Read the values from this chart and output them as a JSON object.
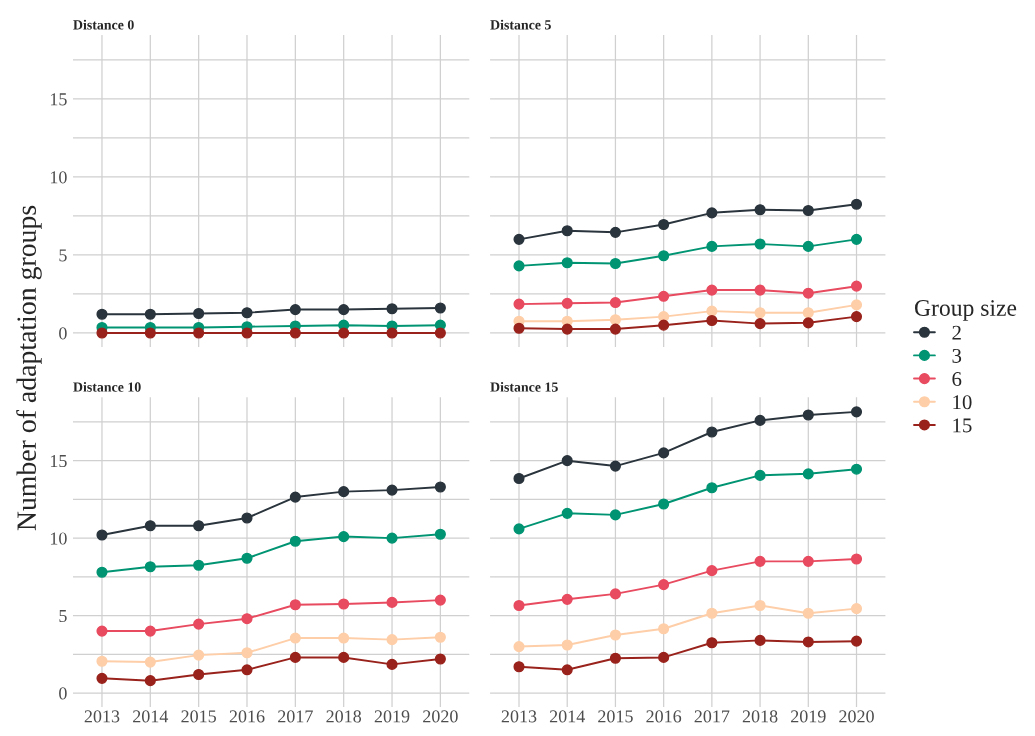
{
  "chart_data": [
    {
      "type": "line",
      "title": "Distance 0",
      "ylabel": "Number of adaptation groups",
      "legend_title": "Group size",
      "legend": "right",
      "grid": true,
      "marker": "circle",
      "tick_labels": "y",
      "categories": [
        "2013",
        "2014",
        "2015",
        "2016",
        "2017",
        "2018",
        "2019",
        "2020"
      ],
      "ylim": [
        -0.9,
        19.1
      ],
      "yticks": [
        0,
        {
          "value": 2.5,
          "label": null
        },
        5,
        {
          "value": 7.5,
          "label": null
        },
        10,
        {
          "value": 12.5,
          "label": null
        },
        15,
        {
          "value": 17.5,
          "label": null
        }
      ],
      "series": [
        {
          "name": "2",
          "color": "#2a343c",
          "values": [
            1.2,
            1.2,
            1.25,
            1.3,
            1.5,
            1.5,
            1.55,
            1.6
          ]
        },
        {
          "name": "3",
          "color": "#009473",
          "values": [
            0.35,
            0.35,
            0.35,
            0.4,
            0.45,
            0.5,
            0.45,
            0.5
          ]
        },
        {
          "name": "6",
          "color": "#e84a5f",
          "values": [
            null,
            null,
            null,
            null,
            null,
            null,
            null,
            null
          ]
        },
        {
          "name": "10",
          "color": "#fecea8",
          "values": [
            null,
            null,
            null,
            null,
            null,
            null,
            null,
            null
          ]
        },
        {
          "name": "15",
          "color": "#99231c",
          "values": [
            0,
            0,
            0,
            0,
            0,
            0,
            0,
            0
          ]
        }
      ]
    },
    {
      "type": "line",
      "title": "Distance 5",
      "grid": true,
      "marker": "circle",
      "tick_labels": false,
      "categories": [
        "2013",
        "2014",
        "2015",
        "2016",
        "2017",
        "2018",
        "2019",
        "2020"
      ],
      "ylim": [
        -0.9,
        19.1
      ],
      "yticks": [
        0,
        {
          "value": 2.5,
          "label": null
        },
        5,
        {
          "value": 7.5,
          "label": null
        },
        10,
        {
          "value": 12.5,
          "label": null
        },
        15,
        {
          "value": 17.5,
          "label": null
        }
      ],
      "series": [
        {
          "color": "#2a343c",
          "values": [
            6.0,
            6.55,
            6.45,
            6.95,
            7.7,
            7.9,
            7.85,
            8.25
          ]
        },
        {
          "color": "#009473",
          "values": [
            4.3,
            4.5,
            4.45,
            4.95,
            5.55,
            5.7,
            5.55,
            6.0
          ]
        },
        {
          "color": "#e84a5f",
          "values": [
            1.85,
            1.9,
            1.95,
            2.35,
            2.75,
            2.75,
            2.55,
            3.0
          ]
        },
        {
          "color": "#fecea8",
          "values": [
            0.75,
            0.75,
            0.85,
            1.05,
            1.4,
            1.3,
            1.3,
            1.8
          ]
        },
        {
          "color": "#99231c",
          "values": [
            0.3,
            0.25,
            0.25,
            0.5,
            0.8,
            0.6,
            0.65,
            1.05
          ]
        }
      ]
    },
    {
      "type": "line",
      "title": "Distance 10",
      "grid": true,
      "marker": "circle",
      "categories": [
        "2013",
        "2014",
        "2015",
        "2016",
        "2017",
        "2018",
        "2019",
        "2020"
      ],
      "ylim": [
        -0.9,
        19.1
      ],
      "yticks": [
        0,
        {
          "value": 2.5,
          "label": null
        },
        5,
        {
          "value": 7.5,
          "label": null
        },
        10,
        {
          "value": 12.5,
          "label": null
        },
        15,
        {
          "value": 17.5,
          "label": null
        }
      ],
      "series": [
        {
          "color": "#2a343c",
          "values": [
            10.2,
            10.8,
            10.8,
            11.3,
            12.65,
            13.0,
            13.1,
            13.3
          ]
        },
        {
          "color": "#009473",
          "values": [
            7.8,
            8.15,
            8.25,
            8.7,
            9.8,
            10.1,
            10.0,
            10.25
          ]
        },
        {
          "color": "#e84a5f",
          "values": [
            4.0,
            4.0,
            4.45,
            4.8,
            5.7,
            5.75,
            5.85,
            6.0
          ]
        },
        {
          "color": "#fecea8",
          "values": [
            2.05,
            2.0,
            2.45,
            2.6,
            3.55,
            3.55,
            3.45,
            3.6
          ]
        },
        {
          "color": "#99231c",
          "values": [
            0.95,
            0.8,
            1.2,
            1.5,
            2.3,
            2.3,
            1.85,
            2.2
          ]
        }
      ]
    },
    {
      "type": "line",
      "title": "Distance 15",
      "grid": true,
      "marker": "circle",
      "tick_labels": "x",
      "categories": [
        "2013",
        "2014",
        "2015",
        "2016",
        "2017",
        "2018",
        "2019",
        "2020"
      ],
      "ylim": [
        -0.9,
        19.1
      ],
      "yticks": [
        0,
        {
          "value": 2.5,
          "label": null
        },
        5,
        {
          "value": 7.5,
          "label": null
        },
        10,
        {
          "value": 12.5,
          "label": null
        },
        15,
        {
          "value": 17.5,
          "label": null
        }
      ],
      "series": [
        {
          "color": "#2a343c",
          "values": [
            13.85,
            15.0,
            14.65,
            15.5,
            16.85,
            17.6,
            17.95,
            18.15
          ]
        },
        {
          "color": "#009473",
          "values": [
            10.6,
            11.6,
            11.5,
            12.2,
            13.25,
            14.05,
            14.15,
            14.45
          ]
        },
        {
          "color": "#e84a5f",
          "values": [
            5.65,
            6.05,
            6.4,
            7.0,
            7.9,
            8.5,
            8.5,
            8.65
          ]
        },
        {
          "color": "#fecea8",
          "values": [
            3.0,
            3.1,
            3.75,
            4.15,
            5.15,
            5.65,
            5.15,
            5.45
          ]
        },
        {
          "color": "#99231c",
          "values": [
            1.7,
            1.5,
            2.25,
            2.3,
            3.25,
            3.4,
            3.3,
            3.35
          ]
        }
      ]
    }
  ]
}
